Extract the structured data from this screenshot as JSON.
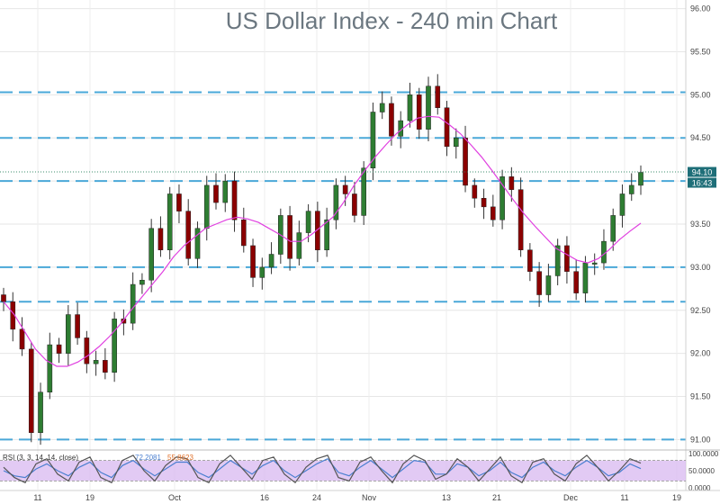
{
  "chart_data": {
    "type": "candlestick",
    "title": "US Dollar Index - 240 min Chart",
    "colors": {
      "up": "#2e7d32",
      "down": "#8b0000",
      "moving_average": "#e040e0",
      "support_resistance": "#4aa8d8",
      "price_tag": "#1e6e78",
      "rsi_fill": "#d8b8f0",
      "rsi_line1": "#555555",
      "rsi_line2": "#4a7fd0"
    },
    "y_axis": {
      "range": [
        90.9,
        96.1
      ],
      "ticks": [
        "96.00",
        "95.50",
        "95.00",
        "94.50",
        "94.00",
        "93.50",
        "93.00",
        "92.50",
        "92.00",
        "91.50",
        "91.00"
      ]
    },
    "x_axis": {
      "ticks": [
        "11",
        "19",
        "Oct",
        "16",
        "24",
        "Nov",
        "13",
        "21",
        "Dec",
        "11",
        "19"
      ]
    },
    "horizontal_levels": [
      95.03,
      94.5,
      94.0,
      93.0,
      92.6,
      91.0
    ],
    "current_price_label": "94.10",
    "countdown_label": "16:43",
    "close_series": [
      92.6,
      92.28,
      92.05,
      91.08,
      91.55,
      92.1,
      92.0,
      92.45,
      92.18,
      91.88,
      91.92,
      91.78,
      92.4,
      92.35,
      92.8,
      92.85,
      93.45,
      93.2,
      93.85,
      93.65,
      93.1,
      93.45,
      93.95,
      93.75,
      94.0,
      93.55,
      93.25,
      92.88,
      93.0,
      93.15,
      93.6,
      93.1,
      93.4,
      93.65,
      93.2,
      93.55,
      93.95,
      93.85,
      93.6,
      94.15,
      94.8,
      94.9,
      94.52,
      94.7,
      95.0,
      94.6,
      95.1,
      94.85,
      94.4,
      94.5,
      93.95,
      93.8,
      93.7,
      93.55,
      94.05,
      93.9,
      93.2,
      92.95,
      92.68,
      92.9,
      93.25,
      92.95,
      92.7,
      93.05,
      93.05,
      93.3,
      93.6,
      93.85,
      93.95,
      94.1
    ],
    "moving_average": [
      92.6,
      92.45,
      92.25,
      92.05,
      91.92,
      91.85,
      91.85,
      91.9,
      91.98,
      92.08,
      92.2,
      92.34,
      92.5,
      92.65,
      92.8,
      92.95,
      93.12,
      93.25,
      93.35,
      93.45,
      93.5,
      93.55,
      93.58,
      93.56,
      93.52,
      93.45,
      93.38,
      93.3,
      93.3,
      93.38,
      93.48,
      93.58,
      93.75,
      93.95,
      94.12,
      94.28,
      94.42,
      94.55,
      94.65,
      94.73,
      94.75,
      94.74,
      94.65,
      94.55,
      94.42,
      94.28,
      94.12,
      93.95,
      93.78,
      93.62,
      93.48,
      93.35,
      93.22,
      93.15,
      93.08,
      93.05,
      93.1,
      93.2,
      93.32,
      93.42,
      93.51
    ],
    "rsi": {
      "label": "RSI (3, 3, 14, 14, close)",
      "value1": "72.2081",
      "value2": "55.8623",
      "ticks": [
        "100.0000",
        "50.0000",
        "0.0000"
      ],
      "levels": [
        80,
        20
      ],
      "k_series": [
        60,
        30,
        15,
        70,
        85,
        40,
        20,
        75,
        90,
        30,
        15,
        80,
        95,
        50,
        20,
        65,
        90,
        85,
        30,
        15,
        70,
        95,
        60,
        25,
        80,
        90,
        40,
        15,
        60,
        85,
        95,
        30,
        20,
        75,
        90,
        50,
        15,
        70,
        95,
        80,
        25,
        40,
        85,
        60,
        20,
        55,
        90,
        35,
        15,
        75,
        85,
        40,
        20,
        70,
        95,
        60,
        20,
        50,
        85,
        72
      ],
      "d_series": [
        50,
        35,
        30,
        55,
        70,
        50,
        35,
        60,
        75,
        45,
        30,
        65,
        80,
        55,
        35,
        55,
        75,
        75,
        45,
        30,
        55,
        80,
        60,
        40,
        65,
        80,
        50,
        30,
        50,
        70,
        85,
        45,
        35,
        60,
        80,
        55,
        30,
        55,
        80,
        75,
        40,
        40,
        70,
        60,
        35,
        50,
        75,
        45,
        30,
        60,
        75,
        50,
        35,
        60,
        80,
        60,
        35,
        45,
        70,
        56
      ]
    }
  }
}
